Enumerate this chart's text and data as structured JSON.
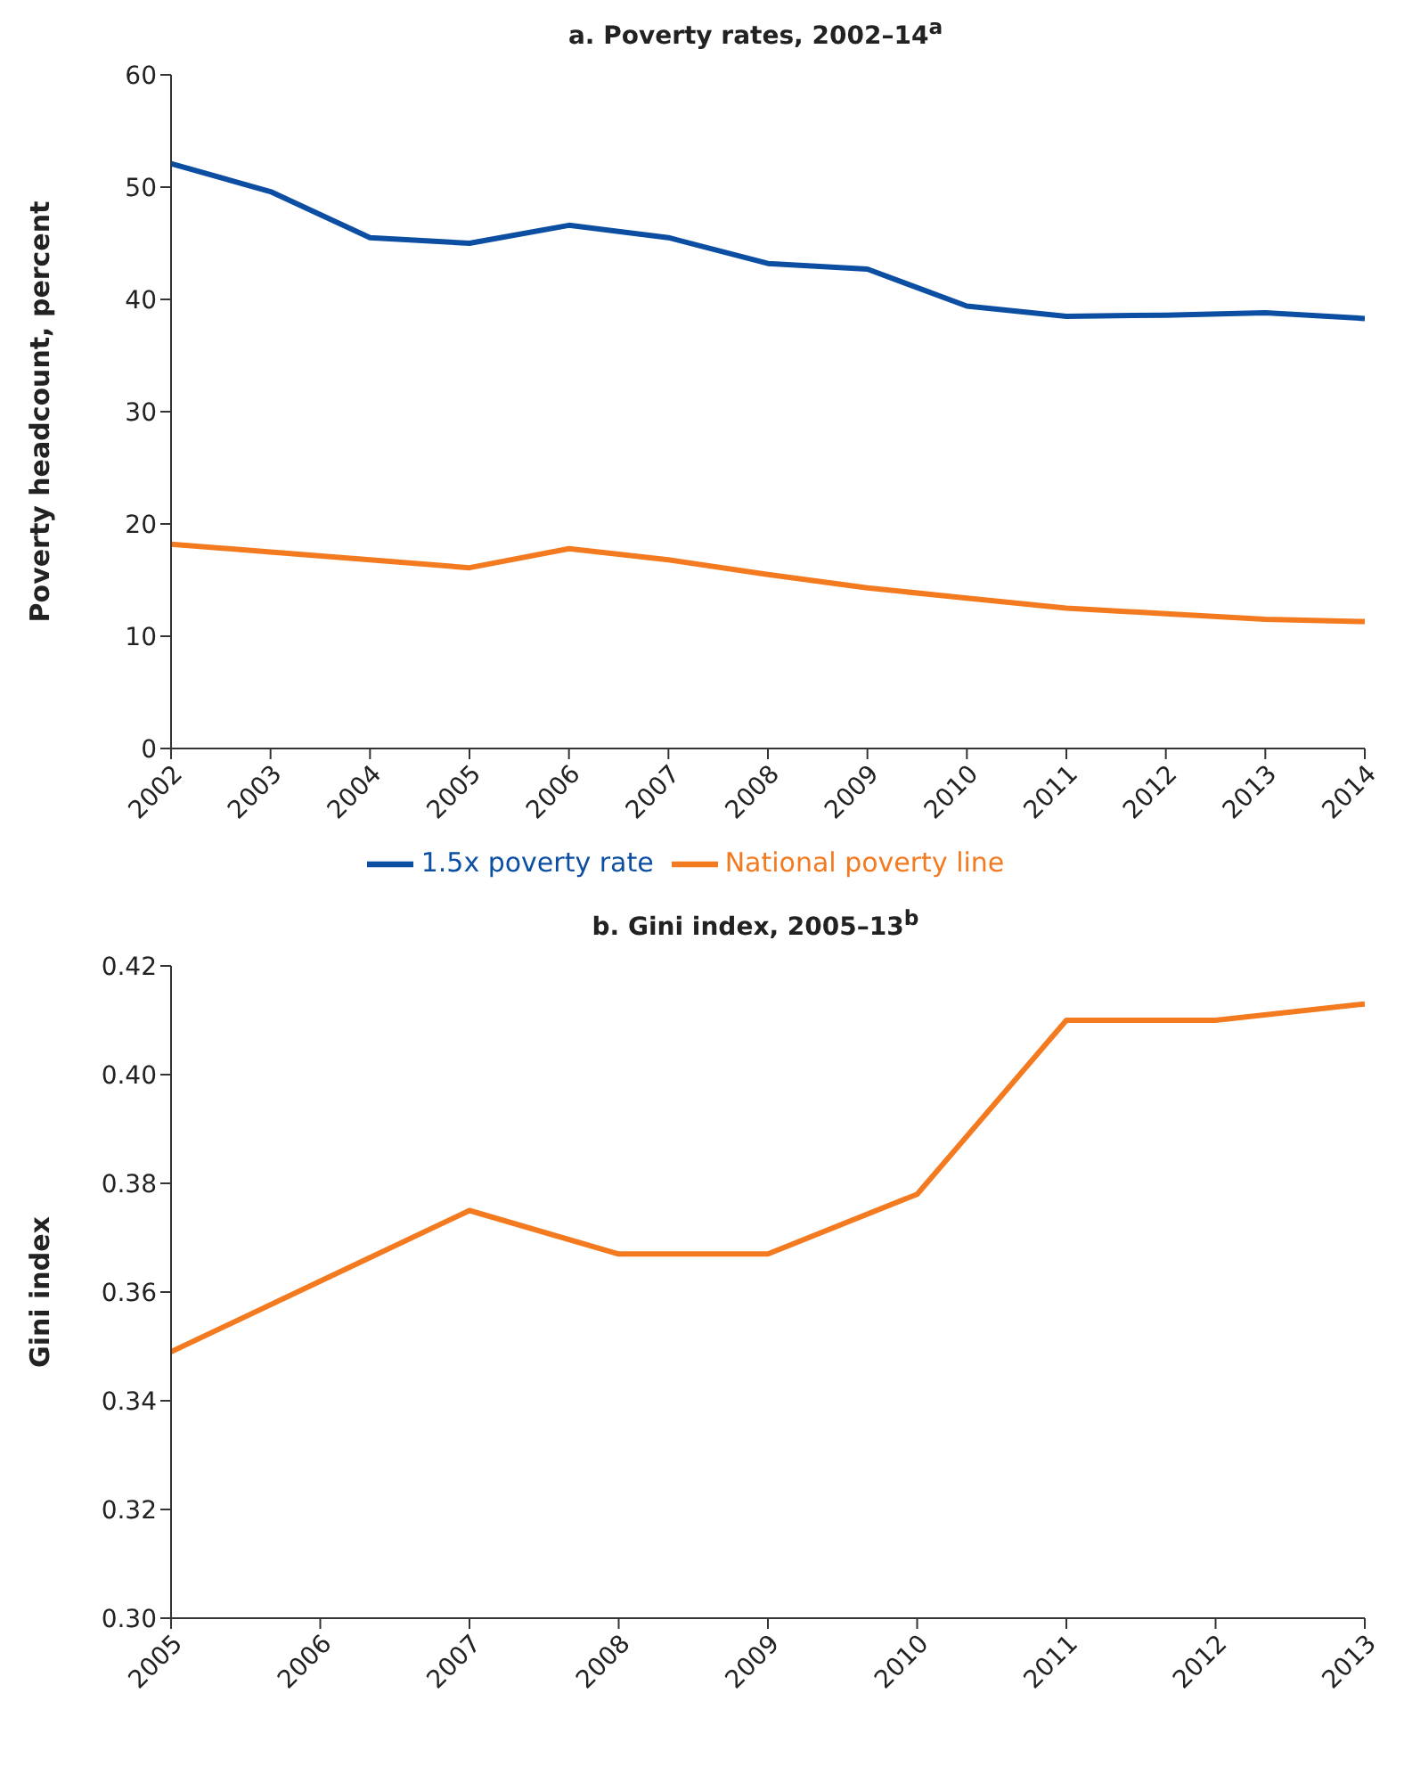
{
  "chart_data": [
    {
      "type": "line",
      "title": "a. Poverty rates, 2002–14$^{a}$",
      "ylabel": "Poverty headcount, percent",
      "x": [
        2002,
        2003,
        2004,
        2005,
        2006,
        2007,
        2008,
        2009,
        2010,
        2011,
        2012,
        2013,
        2014
      ],
      "xlim": [
        2002,
        2014
      ],
      "xticks": [
        2002,
        2003,
        2004,
        2005,
        2006,
        2007,
        2008,
        2009,
        2010,
        2011,
        2012,
        2013,
        2014
      ],
      "ylim": [
        0,
        60
      ],
      "yticks": [
        0,
        10,
        20,
        30,
        40,
        50,
        60
      ],
      "grid": false,
      "legend": "bottom",
      "marker": "none",
      "line_style": "solid",
      "series": [
        {
          "name": "1.5x poverty rate",
          "color": "#0b4ea2",
          "values": [
            52.1,
            49.6,
            45.5,
            45.0,
            46.6,
            45.5,
            43.2,
            42.7,
            39.4,
            38.5,
            38.6,
            38.8,
            38.3
          ]
        },
        {
          "name": "National poverty line",
          "color": "#f47a20",
          "values": [
            18.2,
            17.5,
            16.8,
            16.1,
            17.8,
            16.8,
            15.5,
            14.3,
            13.4,
            12.5,
            12.0,
            11.5,
            11.3
          ]
        }
      ]
    },
    {
      "type": "line",
      "title": "b. Gini index, 2005–13$^{b}$",
      "ylabel": "Gini index",
      "x": [
        2005,
        2006,
        2007,
        2008,
        2009,
        2010,
        2011,
        2012,
        2013
      ],
      "xlim": [
        2005,
        2013
      ],
      "xticks": [
        2005,
        2006,
        2007,
        2008,
        2009,
        2010,
        2011,
        2012,
        2013
      ],
      "ylim": [
        0.3,
        0.42
      ],
      "yticks": [
        {
          "value": 0.3,
          "label": "0.30"
        },
        {
          "value": 0.32,
          "label": "0.32"
        },
        {
          "value": 0.34,
          "label": "0.34"
        },
        {
          "value": 0.36,
          "label": "0.36"
        },
        {
          "value": 0.38,
          "label": "0.38"
        },
        {
          "value": 0.4,
          "label": "0.40"
        },
        {
          "value": 0.42,
          "label": "0.42"
        }
      ],
      "grid": false,
      "marker": "none",
      "line_style": "solid",
      "series": [
        {
          "color": "#f47a20",
          "values": [
            0.349,
            0.362,
            0.375,
            0.367,
            0.367,
            0.378,
            0.41,
            0.41,
            0.413
          ]
        }
      ]
    }
  ]
}
